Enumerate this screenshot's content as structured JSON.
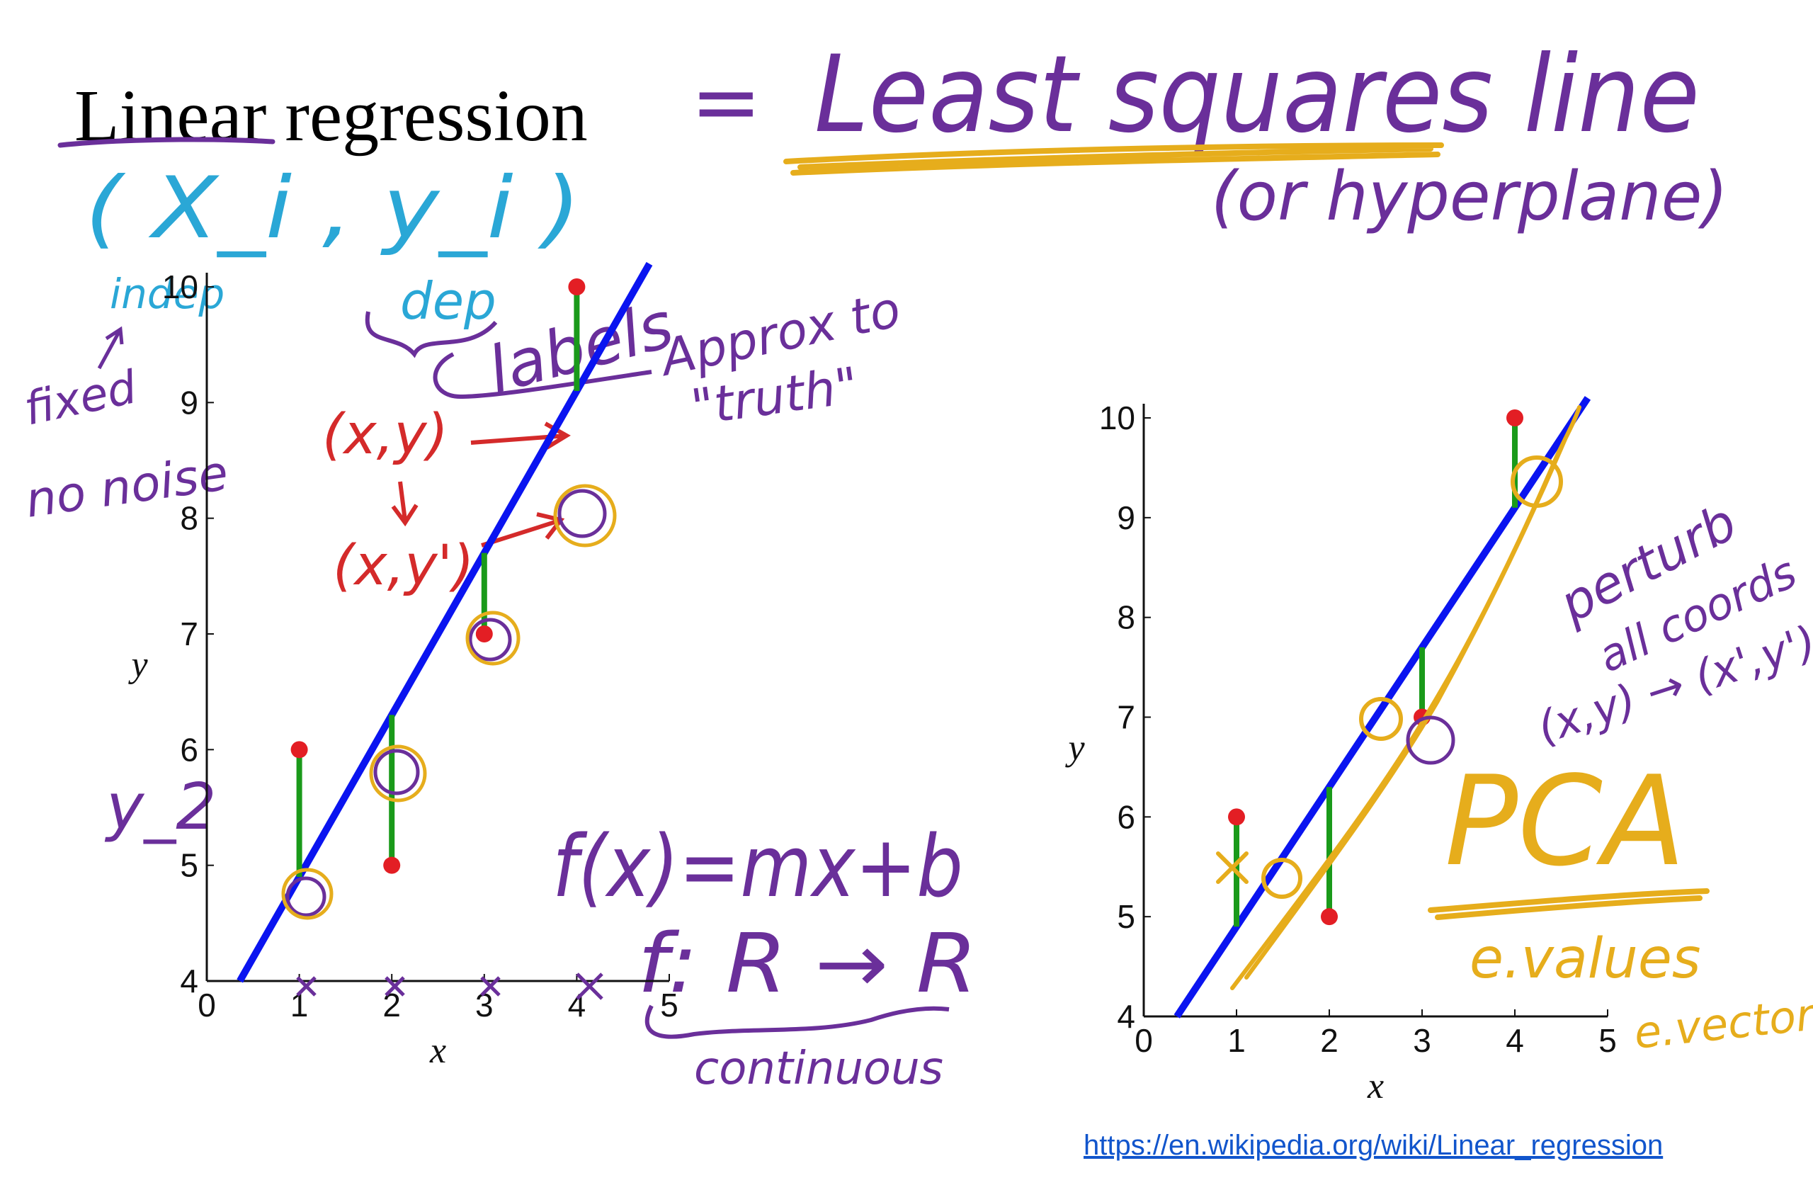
{
  "title": "Linear regression",
  "annotations": {
    "equals_sign": "=",
    "least_squares": "Least squares line",
    "hyperplane": "(or hyperplane)",
    "pair": "( X_i , y_i )",
    "indep": "indep",
    "dep": "dep",
    "fixed": "fixed",
    "no_noise": "no noise",
    "labels": "labels",
    "approx": "Approx to",
    "truth": "\"truth\"",
    "xy": "(x,y)",
    "xy_prime": "(x,y')",
    "y_subscript": "y_2",
    "f_of_x": "f(x)=mx+b",
    "f_map": "f: R → R",
    "continuous": "continuous",
    "perturb": "perturb",
    "all_coords": "all coords",
    "perturb_map": "(x,y) → (x',y')",
    "pca": "PCA",
    "e_values": "e.values",
    "e_vectors": "e.vectors"
  },
  "source_link": "https://en.wikipedia.org/wiki/Linear_regression",
  "colors": {
    "regression_line": "#0a14f0",
    "data_point": "#e31e24",
    "residual": "#1a9a1a",
    "ink_purple": "#6a2f9a",
    "ink_blue": "#2aa7d6",
    "ink_red": "#d42a2a",
    "ink_gold": "#e6ad1c"
  },
  "chart_data": [
    {
      "type": "scatter",
      "xlabel": "x",
      "ylabel": "y",
      "xlim": [
        0,
        5
      ],
      "ylim": [
        4,
        10
      ],
      "x_ticks": [
        "0",
        "1",
        "2",
        "3",
        "4",
        "5"
      ],
      "y_ticks": [
        "4",
        "5",
        "6",
        "7",
        "8",
        "9",
        "10"
      ],
      "points": [
        {
          "x": 1,
          "y": 6
        },
        {
          "x": 2,
          "y": 5
        },
        {
          "x": 3,
          "y": 7
        },
        {
          "x": 4,
          "y": 10
        }
      ],
      "fit_line": {
        "slope": 1.4,
        "intercept": 3.5
      },
      "residuals": "vertical"
    },
    {
      "type": "scatter",
      "xlabel": "x",
      "ylabel": "y",
      "xlim": [
        0,
        5
      ],
      "ylim": [
        4,
        10
      ],
      "x_ticks": [
        "0",
        "1",
        "2",
        "3",
        "4",
        "5"
      ],
      "y_ticks": [
        "4",
        "5",
        "6",
        "7",
        "8",
        "9",
        "10"
      ],
      "points": [
        {
          "x": 1,
          "y": 6
        },
        {
          "x": 2,
          "y": 5
        },
        {
          "x": 3,
          "y": 7
        },
        {
          "x": 4,
          "y": 10
        }
      ],
      "fit_line": {
        "slope": 1.4,
        "intercept": 3.5
      },
      "residuals": "vertical"
    }
  ]
}
